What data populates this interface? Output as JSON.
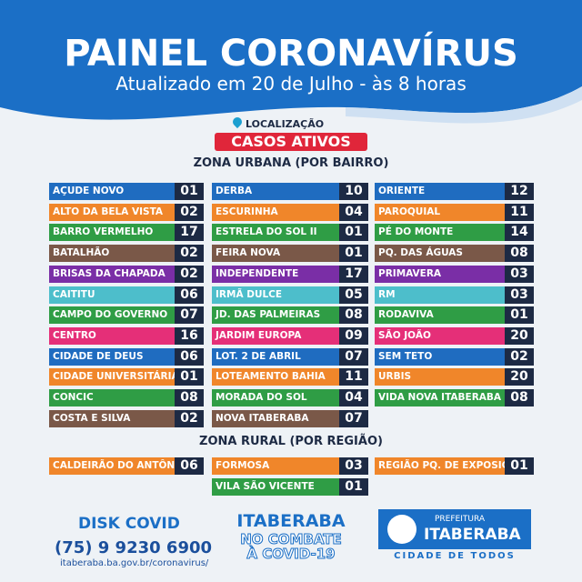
{
  "header": {
    "title": "PAINEL CORONAVÍRUS",
    "subtitle": "Atualizado em 20 de Julho - às 8 horas"
  },
  "location": "LOCALIZAÇÃO",
  "badge": "CASOS ATIVOS",
  "urban": {
    "title": "ZONA URBANA (POR BAIRRO)",
    "columns": [
      [
        {
          "label": "AÇUDE NOVO",
          "value": "01",
          "color": "#1f6cc0"
        },
        {
          "label": "ALTO DA BELA VISTA",
          "value": "02",
          "color": "#f0862a"
        },
        {
          "label": "BARRO VERMELHO",
          "value": "17",
          "color": "#2f9d45"
        },
        {
          "label": "BATALHÃO",
          "value": "02",
          "color": "#7a5848"
        },
        {
          "label": "BRISAS DA CHAPADA",
          "value": "02",
          "color": "#7a2ea6"
        },
        {
          "label": "CAITITU",
          "value": "06",
          "color": "#4dbecb"
        },
        {
          "label": "CAMPO DO GOVERNO",
          "value": "07",
          "color": "#2f9d45"
        },
        {
          "label": "CENTRO",
          "value": "16",
          "color": "#e52f78"
        },
        {
          "label": "CIDADE DE DEUS",
          "value": "06",
          "color": "#1f6cc0"
        },
        {
          "label": "CIDADE UNIVERSITÁRIA",
          "value": "01",
          "color": "#f0862a"
        },
        {
          "label": "CONCIC",
          "value": "08",
          "color": "#2f9d45"
        },
        {
          "label": "COSTA E SILVA",
          "value": "02",
          "color": "#7a5848"
        }
      ],
      [
        {
          "label": "DERBA",
          "value": "10",
          "color": "#1f6cc0"
        },
        {
          "label": "ESCURINHA",
          "value": "04",
          "color": "#f0862a"
        },
        {
          "label": "ESTRELA DO SOL II",
          "value": "01",
          "color": "#2f9d45"
        },
        {
          "label": "FEIRA NOVA",
          "value": "01",
          "color": "#7a5848"
        },
        {
          "label": "INDEPENDENTE",
          "value": "17",
          "color": "#7a2ea6"
        },
        {
          "label": "IRMÃ DULCE",
          "value": "05",
          "color": "#4dbecb"
        },
        {
          "label": "JD. DAS PALMEIRAS",
          "value": "08",
          "color": "#2f9d45"
        },
        {
          "label": "JARDIM EUROPA",
          "value": "09",
          "color": "#e52f78"
        },
        {
          "label": "LOT. 2 DE ABRIL",
          "value": "07",
          "color": "#1f6cc0"
        },
        {
          "label": "LOTEAMENTO BAHIA",
          "value": "11",
          "color": "#f0862a"
        },
        {
          "label": "MORADA DO SOL",
          "value": "04",
          "color": "#2f9d45"
        },
        {
          "label": "NOVA ITABERABA",
          "value": "07",
          "color": "#7a5848"
        }
      ],
      [
        {
          "label": "ORIENTE",
          "value": "12",
          "color": "#1f6cc0"
        },
        {
          "label": "PAROQUIAL",
          "value": "11",
          "color": "#f0862a"
        },
        {
          "label": "PÉ DO MONTE",
          "value": "14",
          "color": "#2f9d45"
        },
        {
          "label": "PQ. DAS ÁGUAS",
          "value": "08",
          "color": "#7a5848"
        },
        {
          "label": "PRIMAVERA",
          "value": "03",
          "color": "#7a2ea6"
        },
        {
          "label": "RM",
          "value": "03",
          "color": "#4dbecb"
        },
        {
          "label": "RODAVIVA",
          "value": "01",
          "color": "#2f9d45"
        },
        {
          "label": "SÃO JOÃO",
          "value": "20",
          "color": "#e52f78"
        },
        {
          "label": "SEM TETO",
          "value": "02",
          "color": "#1f6cc0"
        },
        {
          "label": "URBIS",
          "value": "20",
          "color": "#f0862a"
        },
        {
          "label": "VIDA NOVA ITABERABA",
          "value": "08",
          "color": "#2f9d45"
        }
      ]
    ]
  },
  "rural": {
    "title": "ZONA RURAL (POR REGIÃO)",
    "columns": [
      [
        {
          "label": "CALDEIRÃO DO ANTÔNIO",
          "value": "06",
          "color": "#f0862a"
        }
      ],
      [
        {
          "label": "FORMOSA",
          "value": "03",
          "color": "#f0862a"
        },
        {
          "label": "VILA SÃO VICENTE",
          "value": "01",
          "color": "#2f9d45"
        }
      ],
      [
        {
          "label": "REGIÃO PQ. DE EXPOSIÇÃO",
          "value": "01",
          "color": "#f0862a"
        }
      ]
    ]
  },
  "footer": {
    "disk": "DISK COVID",
    "phone": "(75) 9 9230 6900",
    "url": "itaberaba.ba.gov.br/coronavirus/",
    "campaign_city": "ITABERABA",
    "campaign_line1": "NO COMBATE",
    "campaign_line2": "À COVID-19",
    "pref": "PREFEITURA",
    "city": "ITABERABA",
    "motto": "CIDADE DE TODOS"
  }
}
